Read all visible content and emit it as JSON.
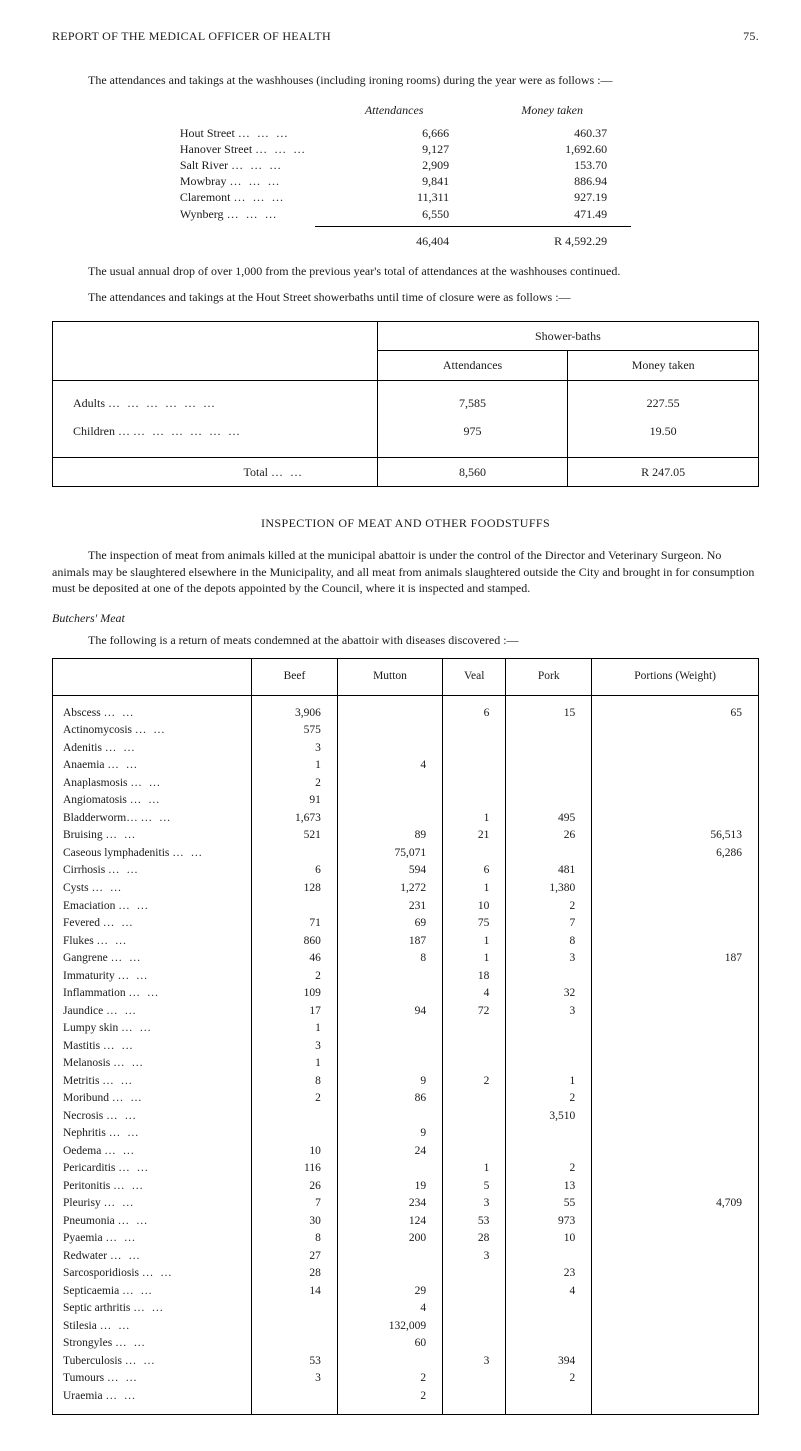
{
  "header": {
    "title": "REPORT OF THE MEDICAL OFFICER OF HEALTH",
    "page_no": "75."
  },
  "intro1": "The attendances and takings at the washhouses (including ironing rooms) during the year were as follows :—",
  "takings": {
    "col_headers": [
      "Attendances",
      "Money taken"
    ],
    "rows": [
      {
        "loc": "Hout Street",
        "att": "6,666",
        "mon": "460.37"
      },
      {
        "loc": "Hanover Street",
        "att": "9,127",
        "mon": "1,692.60"
      },
      {
        "loc": "Salt River",
        "att": "2,909",
        "mon": "153.70"
      },
      {
        "loc": "Mowbray",
        "att": "9,841",
        "mon": "886.94"
      },
      {
        "loc": "Claremont",
        "att": "11,311",
        "mon": "927.19"
      },
      {
        "loc": "Wynberg",
        "att": "6,550",
        "mon": "471.49"
      }
    ],
    "total": {
      "att": "46,404",
      "mon": "R 4,592.29"
    }
  },
  "para2": "The usual annual drop of over 1,000 from the previous year's total of attendances at the washhouses continued.",
  "para3": "The attendances and takings at the Hout Street showerbaths until time of closure were as follows :—",
  "shower": {
    "group_header": "Shower-baths",
    "col_headers": [
      "Attendances",
      "Money taken"
    ],
    "rows": [
      {
        "label": "Adults",
        "att": "7,585",
        "mon": "227.55"
      },
      {
        "label": "Children …",
        "att": "975",
        "mon": "19.50"
      }
    ],
    "total_label": "Total",
    "total": {
      "att": "8,560",
      "mon": "R 247.05"
    }
  },
  "section_title": "INSPECTION OF MEAT AND OTHER FOODSTUFFS",
  "para4": "The inspection of meat from animals killed at the municipal abattoir is under the control of the Director and Veterinary Surgeon. No animals may be slaughtered elsewhere in the Municipality, and all meat from animals slaughtered outside the City and brought in for consumption must be deposited at one of the depots appointed by the Council, where it is inspected and stamped.",
  "butchers_label": "Butchers' Meat",
  "para5": "The following is a return of meats condemned at the abattoir with diseases discovered :—",
  "meat": {
    "columns": [
      "",
      "Beef",
      "Mutton",
      "Veal",
      "Pork",
      "Portions (Weight)"
    ],
    "rows": [
      {
        "name": "Abscess",
        "beef": "3,906",
        "mutton": "",
        "veal": "6",
        "pork": "15",
        "portions": "65"
      },
      {
        "name": "Actinomycosis",
        "beef": "575",
        "mutton": "",
        "veal": "",
        "pork": "",
        "portions": ""
      },
      {
        "name": "Adenitis",
        "beef": "3",
        "mutton": "",
        "veal": "",
        "pork": "",
        "portions": ""
      },
      {
        "name": "Anaemia",
        "beef": "1",
        "mutton": "4",
        "veal": "",
        "pork": "",
        "portions": ""
      },
      {
        "name": "Anaplasmosis",
        "beef": "2",
        "mutton": "",
        "veal": "",
        "pork": "",
        "portions": ""
      },
      {
        "name": "Angiomatosis",
        "beef": "91",
        "mutton": "",
        "veal": "",
        "pork": "",
        "portions": ""
      },
      {
        "name": "Bladderworm…",
        "beef": "1,673",
        "mutton": "",
        "veal": "1",
        "pork": "495",
        "portions": ""
      },
      {
        "name": "Bruising",
        "beef": "521",
        "mutton": "89",
        "veal": "21",
        "pork": "26",
        "portions": "56,513"
      },
      {
        "name": "Caseous lymphadenitis",
        "beef": "",
        "mutton": "75,071",
        "veal": "",
        "pork": "",
        "portions": "6,286"
      },
      {
        "name": "Cirrhosis",
        "beef": "6",
        "mutton": "594",
        "veal": "6",
        "pork": "481",
        "portions": ""
      },
      {
        "name": "Cysts",
        "beef": "128",
        "mutton": "1,272",
        "veal": "1",
        "pork": "1,380",
        "portions": ""
      },
      {
        "name": "Emaciation",
        "beef": "",
        "mutton": "231",
        "veal": "10",
        "pork": "2",
        "portions": ""
      },
      {
        "name": "Fevered",
        "beef": "71",
        "mutton": "69",
        "veal": "75",
        "pork": "7",
        "portions": ""
      },
      {
        "name": "Flukes",
        "beef": "860",
        "mutton": "187",
        "veal": "1",
        "pork": "8",
        "portions": ""
      },
      {
        "name": "Gangrene",
        "beef": "46",
        "mutton": "8",
        "veal": "1",
        "pork": "3",
        "portions": "187"
      },
      {
        "name": "Immaturity",
        "beef": "2",
        "mutton": "",
        "veal": "18",
        "pork": "",
        "portions": ""
      },
      {
        "name": "Inflammation",
        "beef": "109",
        "mutton": "",
        "veal": "4",
        "pork": "32",
        "portions": ""
      },
      {
        "name": "Jaundice",
        "beef": "17",
        "mutton": "94",
        "veal": "72",
        "pork": "3",
        "portions": ""
      },
      {
        "name": "Lumpy skin",
        "beef": "1",
        "mutton": "",
        "veal": "",
        "pork": "",
        "portions": ""
      },
      {
        "name": "Mastitis",
        "beef": "3",
        "mutton": "",
        "veal": "",
        "pork": "",
        "portions": ""
      },
      {
        "name": "Melanosis",
        "beef": "1",
        "mutton": "",
        "veal": "",
        "pork": "",
        "portions": ""
      },
      {
        "name": "Metritis",
        "beef": "8",
        "mutton": "9",
        "veal": "2",
        "pork": "1",
        "portions": ""
      },
      {
        "name": "Moribund",
        "beef": "2",
        "mutton": "86",
        "veal": "",
        "pork": "2",
        "portions": ""
      },
      {
        "name": "Necrosis",
        "beef": "",
        "mutton": "",
        "veal": "",
        "pork": "3,510",
        "portions": ""
      },
      {
        "name": "Nephritis",
        "beef": "",
        "mutton": "9",
        "veal": "",
        "pork": "",
        "portions": ""
      },
      {
        "name": "Oedema",
        "beef": "10",
        "mutton": "24",
        "veal": "",
        "pork": "",
        "portions": ""
      },
      {
        "name": "Pericarditis",
        "beef": "116",
        "mutton": "",
        "veal": "1",
        "pork": "2",
        "portions": ""
      },
      {
        "name": "Peritonitis",
        "beef": "26",
        "mutton": "19",
        "veal": "5",
        "pork": "13",
        "portions": ""
      },
      {
        "name": "Pleurisy",
        "beef": "7",
        "mutton": "234",
        "veal": "3",
        "pork": "55",
        "portions": "4,709"
      },
      {
        "name": "Pneumonia",
        "beef": "30",
        "mutton": "124",
        "veal": "53",
        "pork": "973",
        "portions": ""
      },
      {
        "name": "Pyaemia",
        "beef": "8",
        "mutton": "200",
        "veal": "28",
        "pork": "10",
        "portions": ""
      },
      {
        "name": "Redwater",
        "beef": "27",
        "mutton": "",
        "veal": "3",
        "pork": "",
        "portions": ""
      },
      {
        "name": "Sarcosporidiosis",
        "beef": "28",
        "mutton": "",
        "veal": "",
        "pork": "23",
        "portions": ""
      },
      {
        "name": "Septicaemia",
        "beef": "14",
        "mutton": "29",
        "veal": "",
        "pork": "4",
        "portions": ""
      },
      {
        "name": "Septic arthritis",
        "beef": "",
        "mutton": "4",
        "veal": "",
        "pork": "",
        "portions": ""
      },
      {
        "name": "Stilesia",
        "beef": "",
        "mutton": "132,009",
        "veal": "",
        "pork": "",
        "portions": ""
      },
      {
        "name": "Strongyles",
        "beef": "",
        "mutton": "60",
        "veal": "",
        "pork": "",
        "portions": ""
      },
      {
        "name": "Tuberculosis",
        "beef": "53",
        "mutton": "",
        "veal": "3",
        "pork": "394",
        "portions": ""
      },
      {
        "name": "Tumours",
        "beef": "3",
        "mutton": "2",
        "veal": "",
        "pork": "2",
        "portions": ""
      },
      {
        "name": "Uraemia",
        "beef": "",
        "mutton": "2",
        "veal": "",
        "pork": "",
        "portions": ""
      }
    ]
  }
}
